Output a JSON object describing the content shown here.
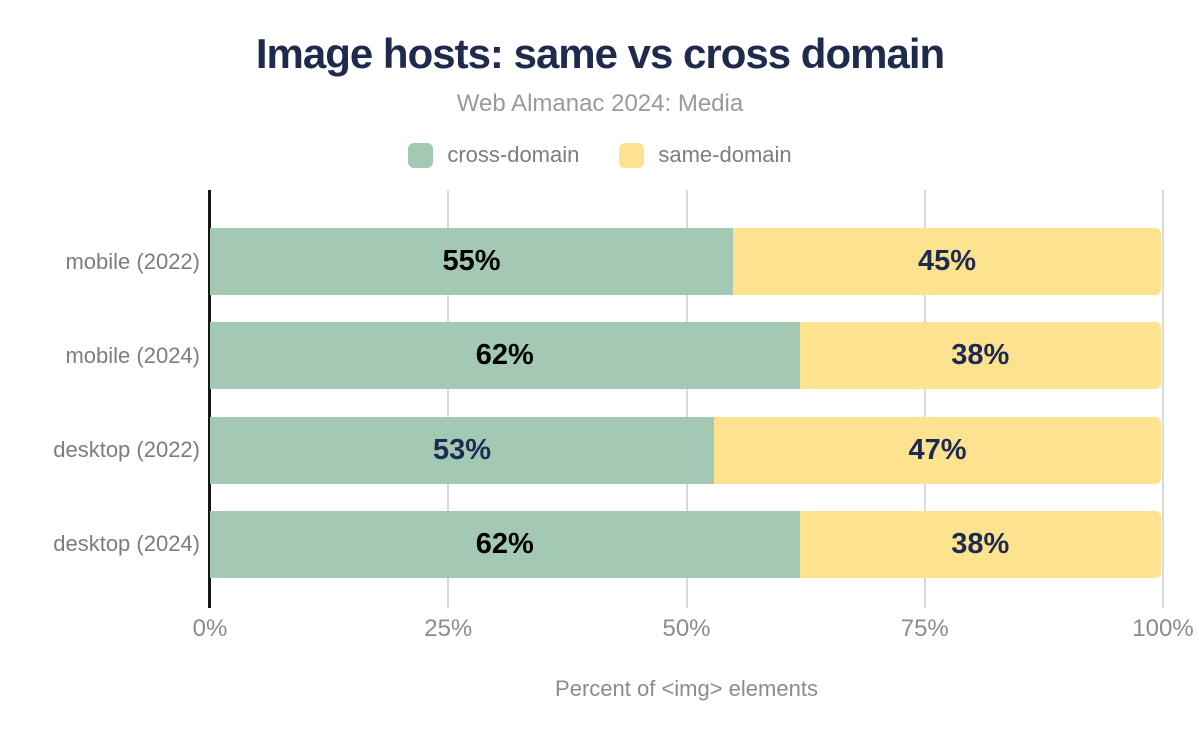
{
  "title": "Image hosts: same vs cross domain",
  "subtitle": "Web Almanac 2024: Media",
  "colors": {
    "title_navy": "#1e2b4d",
    "cross_domain_green": "#a3c8b3",
    "same_domain_yellow": "#fde28f",
    "label_black": "#000000",
    "label_navy": "#1e2b50",
    "gridline_gray": "#d9d9d9",
    "axis_black": "#161616",
    "text_gray": "#7d7d7d"
  },
  "chart_data": {
    "type": "bar",
    "orientation": "horizontal",
    "stacked": true,
    "title": "Image hosts: same vs cross domain",
    "subtitle": "Web Almanac 2024: Media",
    "categories": [
      "mobile (2022)",
      "mobile (2024)",
      "desktop (2022)",
      "desktop (2024)"
    ],
    "series": [
      {
        "name": "cross-domain",
        "color": "#a3c8b3",
        "values": [
          55,
          62,
          53,
          62
        ],
        "label_colors": [
          "#000000",
          "#000000",
          "#1e2b50",
          "#000000"
        ]
      },
      {
        "name": "same-domain",
        "color": "#fde28f",
        "values": [
          45,
          38,
          47,
          38
        ],
        "label_colors": [
          "#1e2b50",
          "#1e2b50",
          "#1e2b50",
          "#1e2b50"
        ]
      }
    ],
    "value_suffix": "%",
    "xlabel": "Percent of <img> elements",
    "ylabel": "",
    "xlim": [
      0,
      100
    ],
    "x_tick_values": [
      0,
      25,
      50,
      75,
      100
    ],
    "x_tick_labels": [
      "0%",
      "25%",
      "50%",
      "75%",
      "100%"
    ],
    "grid": true,
    "legend_position": "top"
  }
}
